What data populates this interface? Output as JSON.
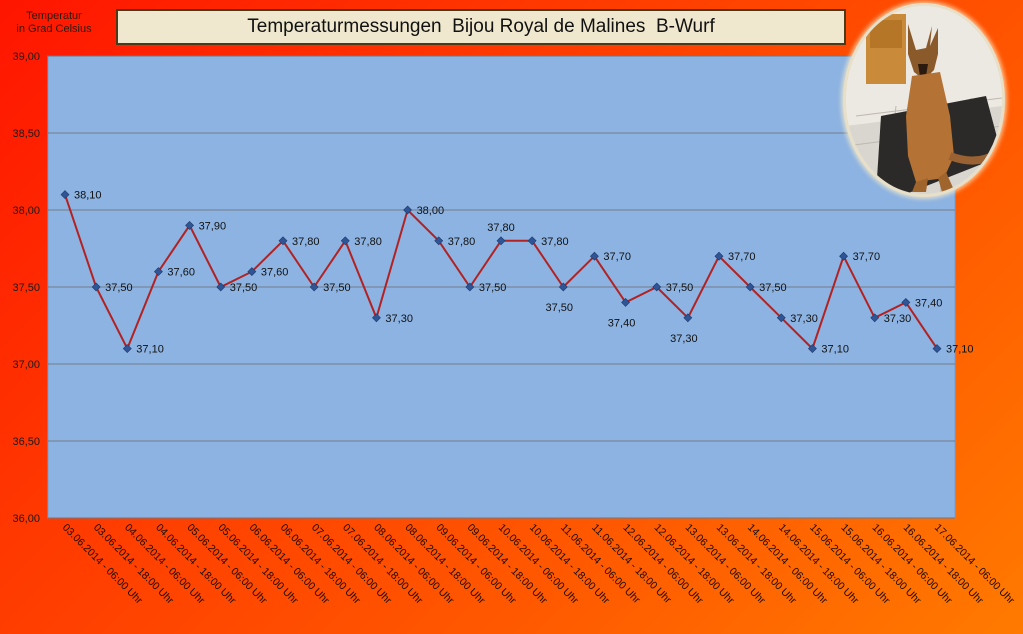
{
  "title": "Temperaturmessungen  Bijou Royal de Malines  B-Wurf",
  "ylabel_line1": "Temperatur",
  "ylabel_line2": "in Grad Celsius",
  "colors": {
    "plot_bg": "#8db3e2",
    "line": "#b22222",
    "marker": "#2f5597",
    "grid": "#6b6b6b",
    "title_bg": "#efe8cf"
  },
  "chart_data": {
    "type": "line",
    "title": "Temperaturmessungen  Bijou Royal de Malines  B-Wurf",
    "ylabel": "Temperatur in Grad Celsius",
    "xlabel": "",
    "ylim": [
      36.0,
      39.0
    ],
    "yticks": [
      "36,00",
      "36,50",
      "37,00",
      "37,50",
      "38,00",
      "38,50",
      "39,00"
    ],
    "grid": true,
    "categories": [
      "03.06.2014 - 06:00 Uhr",
      "03.06.2014 - 18:00 Uhr",
      "04.06.2014 - 06:00 Uhr",
      "04.06.2014 - 18:00 Uhr",
      "05.06.2014 - 06:00 Uhr",
      "05.06.2014 - 18:00 Uhr",
      "06.06.2014 - 06:00 Uhr",
      "06.06.2014 - 18:00 Uhr",
      "07.06.2014 - 06:00 Uhr",
      "07.06.2014 - 18:00 Uhr",
      "08.06.2014 - 06:00 Uhr",
      "08.06.2014 - 18:00 Uhr",
      "09.06.2014 - 06:00 Uhr",
      "09.06.2014 - 18:00 Uhr",
      "10.06.2014 - 06:00 Uhr",
      "10.06.2014 - 18:00 Uhr",
      "11.06.2014 - 06:00 Uhr",
      "11.06.2014 - 18:00 Uhr",
      "12.06.2014 - 06:00 Uhr",
      "12.06.2014 - 18:00 Uhr",
      "13.06.2014 - 06:00 Uhr",
      "13.06.2014 - 18:00 Uhr",
      "14.06.2014 - 06:00 Uhr",
      "14.06.2014 - 18:00 Uhr",
      "15.06.2014 - 06:00 Uhr",
      "15.06.2014 - 18:00 Uhr",
      "16.06.2014 - 06:00 Uhr",
      "16.06.2014 - 18:00 Uhr",
      "17.06.2014 - 06:00 Uhr"
    ],
    "values": [
      38.1,
      37.5,
      37.1,
      37.6,
      37.9,
      37.5,
      37.6,
      37.8,
      37.5,
      37.8,
      37.3,
      38.0,
      37.8,
      37.5,
      37.8,
      37.8,
      37.5,
      37.7,
      37.4,
      37.5,
      37.3,
      37.7,
      37.5,
      37.3,
      37.1,
      37.7,
      37.3,
      37.4,
      37.1
    ],
    "data_labels": [
      "38,10",
      "37,50",
      "37,10",
      "37,60",
      "37,90",
      "37,50",
      "37,60",
      "37,80",
      "37,50",
      "37,80",
      "37,30",
      "38,00",
      "37,80",
      "37,50",
      "37,80",
      "37,80",
      "37,50",
      "37,70",
      "37,40",
      "37,50",
      "37,30",
      "37,70",
      "37,50",
      "37,30",
      "37,10",
      "37,70",
      "37,30",
      "37,40",
      "37,10"
    ]
  }
}
